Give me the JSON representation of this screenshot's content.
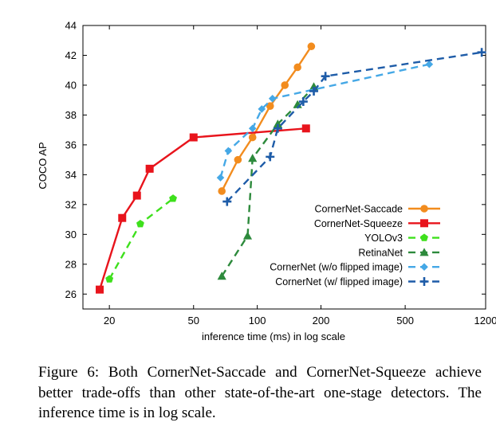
{
  "caption": "Figure 6: Both CornerNet-Saccade and CornerNet-Squeeze achieve better trade-offs than other state-of-the-art one-stage detectors. The inference time is in log scale.",
  "chart_data": {
    "type": "line",
    "xlabel": "inference time (ms) in log scale",
    "ylabel": "COCO AP",
    "xscale": "log",
    "xlim": [
      15,
      1200
    ],
    "ylim": [
      25,
      44
    ],
    "xticks": [
      20,
      50,
      100,
      200,
      500,
      1200
    ],
    "yticks": [
      26,
      28,
      30,
      32,
      34,
      36,
      38,
      40,
      42,
      44
    ],
    "legend_position": "bottom-right",
    "grid": false,
    "series": [
      {
        "name": "CornerNet-Saccade",
        "color": "#f28c1e",
        "marker": "circle",
        "dash": "solid",
        "x": [
          68,
          81,
          95,
          115,
          135,
          155,
          180
        ],
        "y": [
          32.9,
          35.0,
          36.5,
          38.6,
          40.0,
          41.2,
          42.6
        ]
      },
      {
        "name": "CornerNet-Squeeze",
        "color": "#e8141c",
        "marker": "square",
        "dash": "solid",
        "x": [
          18,
          23,
          27,
          31,
          50,
          170
        ],
        "y": [
          26.3,
          31.1,
          32.6,
          34.4,
          36.5,
          37.1
        ]
      },
      {
        "name": "YOLOv3",
        "color": "#3ee01c",
        "marker": "pentagon",
        "dash": "dashed",
        "x": [
          20,
          28,
          40
        ],
        "y": [
          27.0,
          30.7,
          32.4
        ]
      },
      {
        "name": "RetinaNet",
        "color": "#2d8a3c",
        "marker": "triangle",
        "dash": "dashed",
        "x": [
          68,
          90,
          95,
          125,
          155,
          185
        ],
        "y": [
          27.2,
          29.9,
          35.1,
          37.4,
          38.7,
          39.9
        ]
      },
      {
        "name": "CornerNet (w/o flipped image)",
        "color": "#45a8e6",
        "marker": "diamond",
        "dash": "dashed",
        "x": [
          67,
          73,
          95,
          105,
          118,
          650
        ],
        "y": [
          33.8,
          35.6,
          37.1,
          38.4,
          39.1,
          41.4
        ]
      },
      {
        "name": "CornerNet (w/ flipped image)",
        "color": "#1e5ca8",
        "marker": "plus",
        "dash": "dashed",
        "x": [
          72,
          115,
          125,
          165,
          185,
          210,
          1150
        ],
        "y": [
          32.2,
          35.2,
          37.1,
          38.9,
          39.6,
          40.6,
          42.2
        ]
      }
    ]
  }
}
